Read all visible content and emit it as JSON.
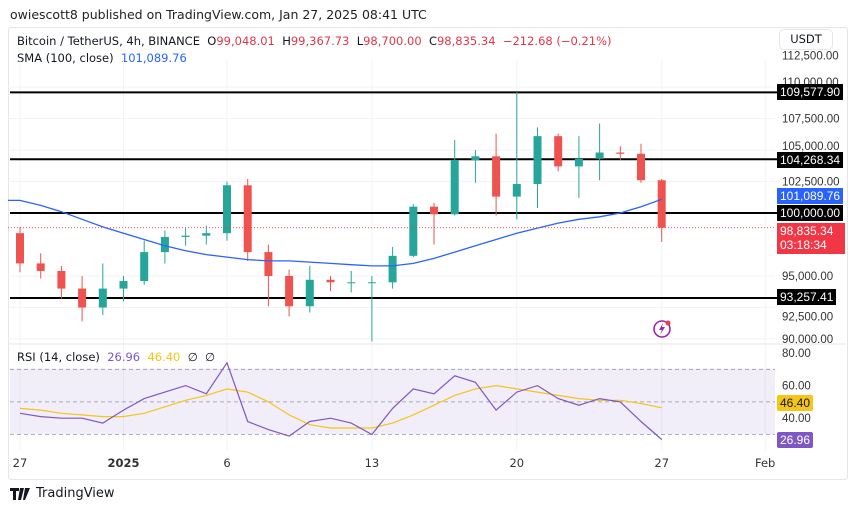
{
  "author_line": "owiescott8 published on TradingView.com, Jan 27, 2025 08:41 UTC",
  "legend": {
    "symbol": "Bitcoin / TetherUS, 4h, BINANCE",
    "open_label": "O",
    "open": "99,048.01",
    "high_label": "H",
    "high": "99,367.73",
    "low_label": "L",
    "low": "98,700.00",
    "close_label": "C",
    "close": "98,835.34",
    "change": "−212.68 (−0.21%)",
    "sma_label": "SMA (100, close)",
    "sma_value": "101,089.76",
    "rsi_label": "RSI (14, close)",
    "rsi_value": "26.96",
    "rsi_ma_value": "46.40",
    "rsi_extra1": "∅",
    "rsi_extra2": "∅"
  },
  "currency_button": "USDT",
  "price_labels": {
    "level_1": "109,577.90",
    "level_2": "104,268.34",
    "sma": "101,089.76",
    "level_3": "100,000.00",
    "last_price": "98,835.34",
    "countdown": "03:18:34",
    "level_4": "93,257.41"
  },
  "rsi_labels": {
    "ma": "46.40",
    "rsi": "26.96"
  },
  "brand": "TradingView",
  "colors": {
    "up": "#26a69a",
    "down": "#ef5350",
    "sma": "#2962ff",
    "rsi": "#7e57c2",
    "rsi_ma": "#f5c518",
    "level": "#000000",
    "last": "#f23645"
  },
  "chart_data": [
    {
      "type": "candlestick",
      "title": "Bitcoin / TetherUS, 4h, BINANCE",
      "ylim": [
        90000,
        112500
      ],
      "y_ticks": [
        "112,500.00",
        "110,000.00",
        "107,500.00",
        "105,000.00",
        "102,500.00",
        "95,000.00",
        "92,500.00",
        "90,000.00"
      ],
      "x_ticks": [
        {
          "label": "27",
          "day": 0
        },
        {
          "label": "2025",
          "day": 5
        },
        {
          "label": "6",
          "day": 10
        },
        {
          "label": "13",
          "day": 17
        },
        {
          "label": "20",
          "day": 24
        },
        {
          "label": "27",
          "day": 31
        },
        {
          "label": "Feb",
          "day": 36
        }
      ],
      "horizontal_levels": [
        109577.9,
        104268.34,
        100000.0,
        93257.41
      ],
      "last_price": 98835.34,
      "candles": [
        [
          "Dec 27",
          98400,
          98900,
          95300,
          96000
        ],
        [
          "Dec 28",
          96000,
          96800,
          94800,
          95400
        ],
        [
          "Dec 29",
          95400,
          95800,
          93200,
          94000
        ],
        [
          "Dec 30",
          94000,
          95000,
          91400,
          92500
        ],
        [
          "Dec 31",
          92500,
          96000,
          91900,
          94000
        ],
        [
          "Jan 1",
          94000,
          95000,
          93000,
          94600
        ],
        [
          "Jan 2",
          94600,
          97800,
          94300,
          96900
        ],
        [
          "Jan 3",
          96900,
          98600,
          96000,
          98100
        ],
        [
          "Jan 4",
          98100,
          98800,
          97400,
          98200
        ],
        [
          "Jan 5",
          98200,
          99000,
          97500,
          98400
        ],
        [
          "Jan 6",
          98400,
          102500,
          97800,
          102200
        ],
        [
          "Jan 7",
          102200,
          102700,
          96200,
          96900
        ],
        [
          "Jan 8",
          96900,
          97500,
          92600,
          95000
        ],
        [
          "Jan 9",
          95000,
          95500,
          91800,
          92600
        ],
        [
          "Jan 10",
          92600,
          95800,
          92100,
          94700
        ],
        [
          "Jan 11",
          94700,
          95000,
          93800,
          94500
        ],
        [
          "Jan 12",
          94500,
          95400,
          93700,
          94500
        ],
        [
          "Jan 13",
          94500,
          95000,
          89800,
          94500
        ],
        [
          "Jan 14",
          94500,
          97300,
          94000,
          96600
        ],
        [
          "Jan 15",
          96600,
          100700,
          96500,
          100500
        ],
        [
          "Jan 16",
          100500,
          100800,
          97500,
          99900
        ],
        [
          "Jan 17",
          99900,
          105800,
          99800,
          104200
        ],
        [
          "Jan 18",
          104200,
          105000,
          102400,
          104500
        ],
        [
          "Jan 19",
          104500,
          106300,
          99800,
          101300
        ],
        [
          "Jan 20",
          101300,
          109600,
          99500,
          102300
        ],
        [
          "Jan 21",
          102300,
          106800,
          100400,
          106100
        ],
        [
          "Jan 22",
          106100,
          106300,
          103300,
          103700
        ],
        [
          "Jan 23",
          103700,
          106100,
          101200,
          104300
        ],
        [
          "Jan 24",
          104300,
          107100,
          102600,
          104800
        ],
        [
          "Jan 25",
          104800,
          105300,
          104200,
          104700
        ],
        [
          "Jan 26",
          104700,
          105500,
          102400,
          102600
        ],
        [
          "Jan 27",
          102600,
          102700,
          97700,
          98835.34
        ]
      ],
      "series": [
        {
          "name": "SMA (100, close)",
          "values": [
            101000,
            100600,
            100100,
            99500,
            98900,
            98400,
            97900,
            97400,
            97000,
            96700,
            96500,
            96300,
            96200,
            96200,
            96100,
            96000,
            95900,
            95800,
            95800,
            96000,
            96400,
            96900,
            97400,
            97900,
            98400,
            98800,
            99200,
            99500,
            99700,
            100000,
            100500,
            101089.76
          ]
        }
      ]
    },
    {
      "type": "line",
      "title": "RSI (14, close)",
      "ylim": [
        20,
        85
      ],
      "y_ticks": [
        "80.00",
        "60.00",
        "40.00"
      ],
      "bands": [
        30,
        50,
        70
      ],
      "series": [
        {
          "name": "RSI",
          "values": [
            43,
            41,
            40,
            40,
            37,
            45,
            52,
            56,
            60,
            55,
            74,
            38,
            33,
            29,
            38,
            40,
            37,
            30,
            46,
            58,
            55,
            66,
            62,
            45,
            56,
            60,
            52,
            48,
            52,
            50,
            38,
            26.96
          ]
        },
        {
          "name": "RSI MA",
          "values": [
            46,
            45,
            43,
            42,
            41,
            41,
            43,
            47,
            51,
            54,
            58,
            56,
            50,
            42,
            36,
            34,
            34,
            34,
            37,
            42,
            48,
            54,
            58,
            60,
            58,
            56,
            54,
            52,
            51,
            51,
            49,
            46.4
          ]
        }
      ]
    }
  ]
}
